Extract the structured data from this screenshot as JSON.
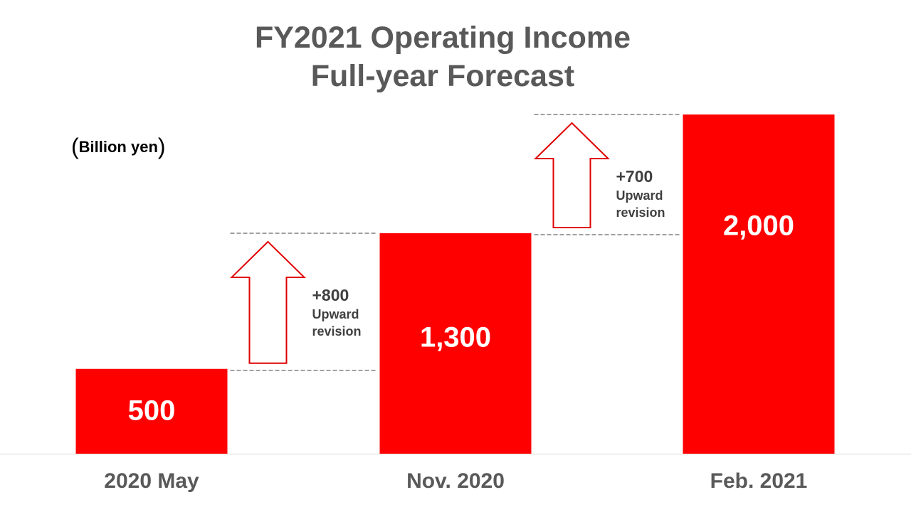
{
  "chart_data": {
    "type": "bar",
    "title_lines": [
      "FY2021 Operating Income",
      "Full-year Forecast"
    ],
    "unit_label": "Billion yen",
    "categories": [
      "2020 May",
      "Nov. 2020",
      "Feb. 2021"
    ],
    "values": [
      500,
      1300,
      2000
    ],
    "value_labels": [
      "500",
      "1,300",
      "2,000"
    ],
    "ylim": [
      0,
      2000
    ],
    "grid": false,
    "bar_color": "#ff0000",
    "arrow_color": "#e00000",
    "annotations": [
      {
        "from": 0,
        "to": 1,
        "amount": "+800",
        "text_lines": [
          "Upward",
          "revision"
        ]
      },
      {
        "from": 1,
        "to": 2,
        "amount": "+700",
        "text_lines": [
          "Upward",
          "revision"
        ]
      }
    ]
  }
}
